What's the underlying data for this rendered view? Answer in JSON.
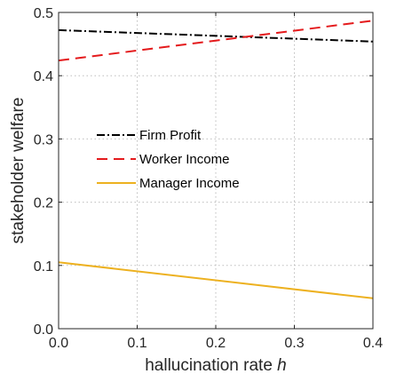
{
  "chart_data": {
    "type": "line",
    "title": "",
    "xlabel": "hallucination rate",
    "xlabel_symbol": "h",
    "ylabel": "stakeholder welfare",
    "xlim": [
      0,
      0.4
    ],
    "ylim": [
      0,
      0.5
    ],
    "grid": true,
    "legend_position": "center-left",
    "x_ticks": [
      0,
      0.1,
      0.2,
      0.3,
      0.4
    ],
    "x_tick_labels": [
      "0.0",
      "0.1",
      "0.2",
      "0.3",
      "0.4"
    ],
    "y_ticks": [
      0,
      0.1,
      0.2,
      0.3,
      0.4,
      0.5
    ],
    "y_tick_labels": [
      "0.0",
      "0.1",
      "0.2",
      "0.3",
      "0.4",
      "0.5"
    ],
    "series": [
      {
        "name": "Firm Profit",
        "color": "#000000",
        "style": "dash-dot",
        "x": [
          0,
          0.4
        ],
        "y": [
          0.472,
          0.454
        ]
      },
      {
        "name": "Worker Income",
        "color": "#e41a1c",
        "style": "dashed",
        "x": [
          0,
          0.4
        ],
        "y": [
          0.424,
          0.487
        ]
      },
      {
        "name": "Manager Income",
        "color": "#edb120",
        "style": "solid",
        "x": [
          0,
          0.4
        ],
        "y": [
          0.105,
          0.048
        ]
      }
    ]
  }
}
